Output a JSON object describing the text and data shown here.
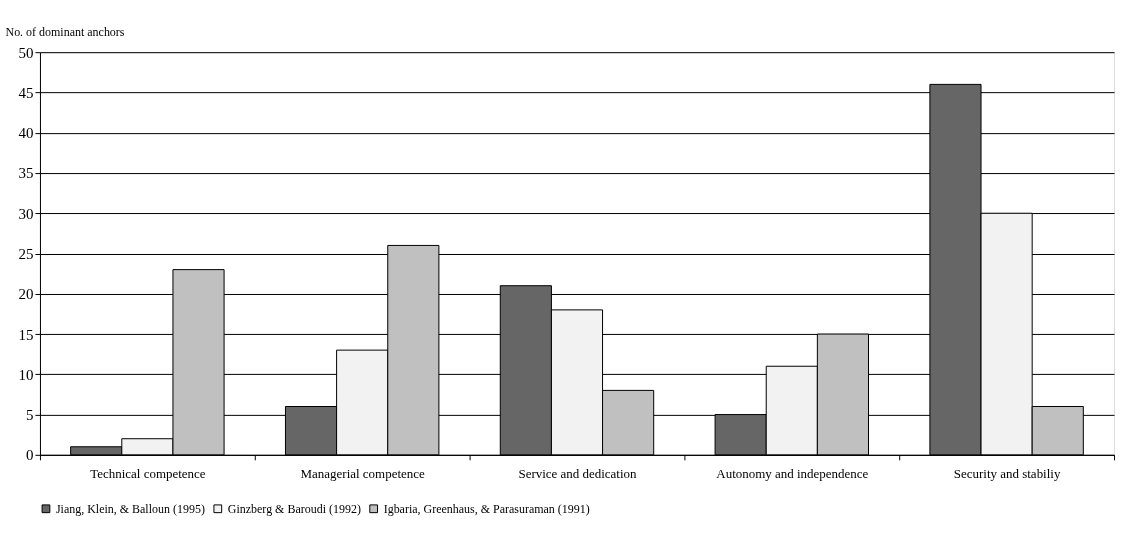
{
  "chart_data": {
    "type": "bar",
    "ylabel": "No. of dominant anchors",
    "categories": [
      "Technical competence",
      "Managerial competence",
      "Service and dedication",
      "Autonomy and independence",
      "Security and stabiliy"
    ],
    "series": [
      {
        "name": "Jiang, Klein, & Balloun (1995)",
        "color": "#666666",
        "values": [
          1,
          6,
          21,
          5,
          46
        ]
      },
      {
        "name": "Ginzberg & Baroudi (1992)",
        "color": "#f2f2f2",
        "values": [
          2,
          13,
          18,
          11,
          30
        ]
      },
      {
        "name": "Igbaria, Greenhaus, & Parasuraman (1991)",
        "color": "#c0c0c0",
        "values": [
          23,
          26,
          8,
          15,
          6
        ]
      }
    ],
    "ylim": [
      0,
      50
    ],
    "yticks": [
      0,
      5,
      10,
      15,
      20,
      25,
      30,
      35,
      40,
      45,
      50
    ],
    "grid": "y",
    "legend": "bottom"
  }
}
